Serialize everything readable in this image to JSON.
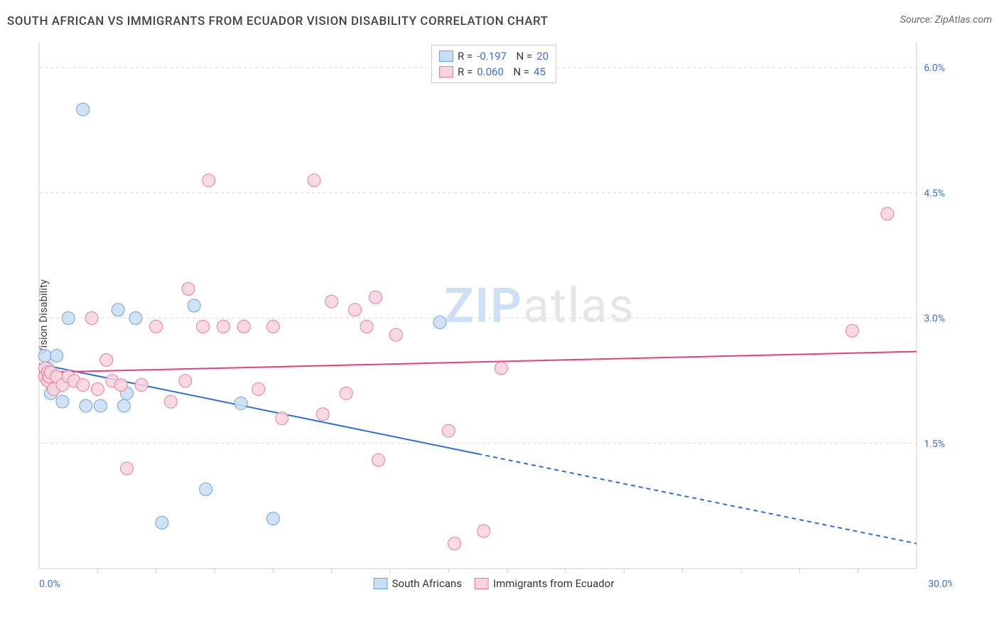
{
  "header": {
    "title": "SOUTH AFRICAN VS IMMIGRANTS FROM ECUADOR VISION DISABILITY CORRELATION CHART",
    "source_prefix": "Source: ",
    "source_name": "ZipAtlas.com"
  },
  "chart": {
    "type": "scatter",
    "ylabel": "Vision Disability",
    "xlim": [
      0,
      30
    ],
    "ylim": [
      0,
      6.3
    ],
    "x_ticks": [
      0,
      30
    ],
    "x_tick_labels": [
      "0.0%",
      "30.0%"
    ],
    "x_minor_ticks": [
      2,
      4,
      6,
      8,
      10,
      12,
      14,
      16,
      18,
      20,
      22,
      24,
      26,
      28
    ],
    "y_gridlines": [
      0,
      1.5,
      3.0,
      4.5,
      6.0
    ],
    "y_gridline_labels": [
      "",
      "1.5%",
      "3.0%",
      "4.5%",
      "6.0%"
    ],
    "background_color": "#ffffff",
    "grid_color": "#d8d8d8",
    "axis_color": "#cccccc",
    "tick_label_color": "#3b6fd6",
    "marker_radius": 9,
    "series": [
      {
        "name": "South Africans",
        "fill": "#c9ddf4",
        "stroke": "#6fa3e0",
        "R": "-0.197",
        "N": "20",
        "trend": {
          "y_at_x0": 2.45,
          "y_at_xmax": 0.3,
          "solid_until_x": 15,
          "color": "#2c6fd8",
          "width": 2
        },
        "points": [
          [
            0.2,
            2.55
          ],
          [
            0.3,
            2.25
          ],
          [
            0.3,
            2.4
          ],
          [
            0.4,
            2.1
          ],
          [
            0.6,
            2.55
          ],
          [
            0.8,
            2.0
          ],
          [
            1.0,
            3.0
          ],
          [
            1.5,
            5.5
          ],
          [
            1.6,
            1.95
          ],
          [
            2.1,
            1.95
          ],
          [
            2.7,
            3.1
          ],
          [
            2.9,
            1.95
          ],
          [
            3.0,
            2.1
          ],
          [
            3.3,
            3.0
          ],
          [
            4.2,
            0.55
          ],
          [
            5.3,
            3.15
          ],
          [
            5.7,
            0.95
          ],
          [
            6.9,
            1.98
          ],
          [
            8.0,
            0.6
          ],
          [
            13.7,
            2.95
          ]
        ]
      },
      {
        "name": "Immigrants from Ecuador",
        "fill": "#f8d4dd",
        "stroke": "#e87f9c",
        "R": "0.060",
        "N": "45",
        "trend": {
          "y_at_x0": 2.35,
          "y_at_xmax": 2.6,
          "solid_until_x": 30,
          "color": "#e83f7a",
          "width": 2
        },
        "points": [
          [
            0.2,
            2.4
          ],
          [
            0.2,
            2.3
          ],
          [
            0.3,
            2.35
          ],
          [
            0.3,
            2.25
          ],
          [
            0.35,
            2.3
          ],
          [
            0.4,
            2.35
          ],
          [
            0.5,
            2.15
          ],
          [
            0.6,
            2.3
          ],
          [
            0.8,
            2.2
          ],
          [
            1.0,
            2.3
          ],
          [
            1.2,
            2.25
          ],
          [
            1.5,
            2.2
          ],
          [
            1.8,
            3.0
          ],
          [
            2.0,
            2.15
          ],
          [
            2.3,
            2.5
          ],
          [
            2.5,
            2.25
          ],
          [
            2.8,
            2.2
          ],
          [
            3.0,
            1.2
          ],
          [
            3.5,
            2.2
          ],
          [
            4.0,
            2.9
          ],
          [
            4.5,
            2.0
          ],
          [
            5.0,
            2.25
          ],
          [
            5.1,
            3.35
          ],
          [
            5.6,
            2.9
          ],
          [
            5.8,
            4.65
          ],
          [
            6.3,
            2.9
          ],
          [
            7.0,
            2.9
          ],
          [
            7.5,
            2.15
          ],
          [
            8.0,
            2.9
          ],
          [
            8.3,
            1.8
          ],
          [
            9.4,
            4.65
          ],
          [
            9.7,
            1.85
          ],
          [
            10.0,
            3.2
          ],
          [
            10.5,
            2.1
          ],
          [
            10.8,
            3.1
          ],
          [
            11.2,
            2.9
          ],
          [
            11.5,
            3.25
          ],
          [
            11.6,
            1.3
          ],
          [
            12.2,
            2.8
          ],
          [
            14.0,
            1.65
          ],
          [
            14.2,
            0.3
          ],
          [
            15.2,
            0.45
          ],
          [
            15.8,
            2.4
          ],
          [
            27.8,
            2.85
          ],
          [
            29.0,
            4.25
          ]
        ]
      }
    ]
  },
  "watermark": {
    "part1": "ZIP",
    "part2": "atlas"
  },
  "legend_bottom": {
    "items": [
      {
        "swatch_fill": "#c9ddf4",
        "swatch_stroke": "#6fa3e0",
        "label": "South Africans"
      },
      {
        "swatch_fill": "#f8d4dd",
        "swatch_stroke": "#e87f9c",
        "label": "Immigrants from Ecuador"
      }
    ]
  }
}
